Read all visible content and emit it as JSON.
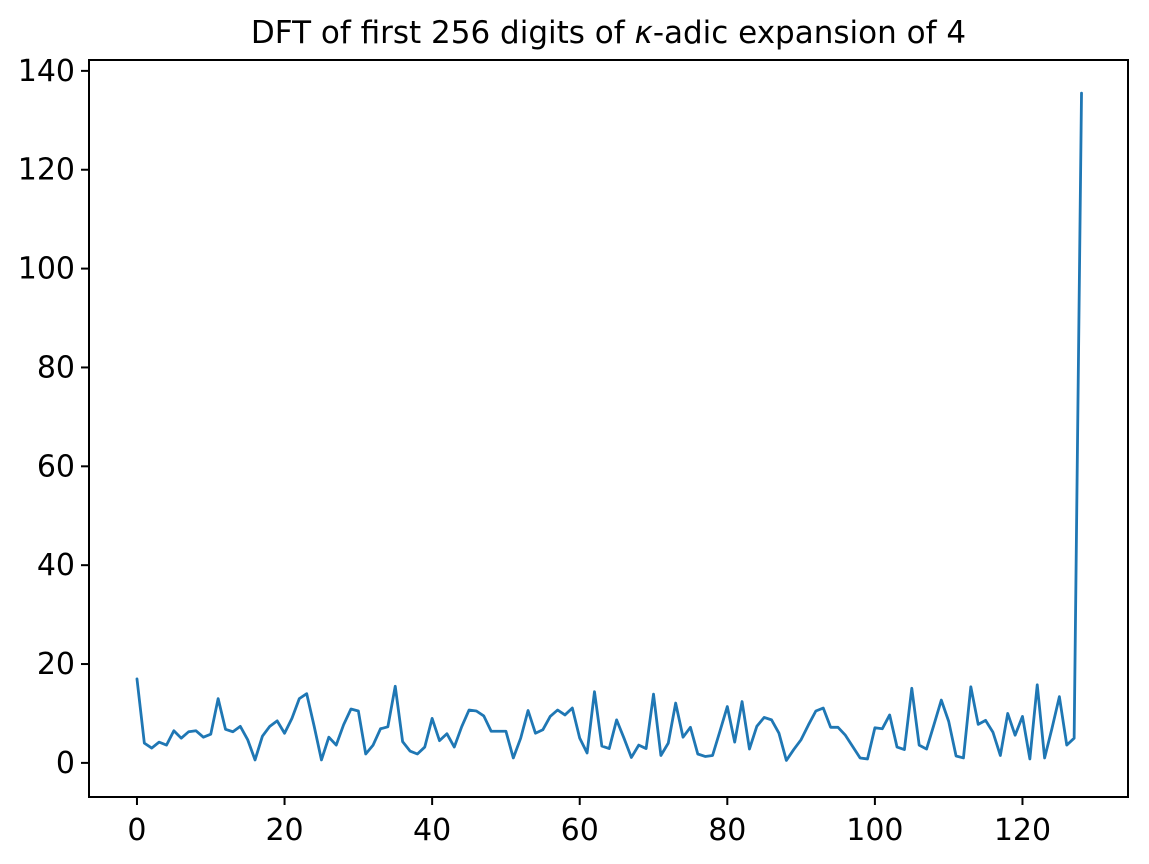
{
  "figure": {
    "background": "#ffffff"
  },
  "chart_data": {
    "type": "line",
    "title": "DFT of first 256 digits of κ-adic expansion of 4",
    "title_parts": [
      {
        "text": "DFT of first 256 digits of ",
        "italic": false
      },
      {
        "text": "κ",
        "italic": true
      },
      {
        "text": "-adic expansion of 4",
        "italic": false
      }
    ],
    "xlabel": "",
    "ylabel": "",
    "legend": "none",
    "grid": false,
    "line_color": "#1f77b4",
    "axis_color": "#000000",
    "tick_label_color": "#000000",
    "xlim": [
      -6.5,
      134.3
    ],
    "ylim": [
      -6.9,
      142.2
    ],
    "xticks": [
      0,
      20,
      40,
      60,
      80,
      100,
      120
    ],
    "yticks": [
      0,
      20,
      40,
      60,
      80,
      100,
      120,
      140
    ],
    "x": [
      0,
      1,
      2,
      3,
      4,
      5,
      6,
      7,
      8,
      9,
      10,
      11,
      12,
      13,
      14,
      15,
      16,
      17,
      18,
      19,
      20,
      21,
      22,
      23,
      24,
      25,
      26,
      27,
      28,
      29,
      30,
      31,
      32,
      33,
      34,
      35,
      36,
      37,
      38,
      39,
      40,
      41,
      42,
      43,
      44,
      45,
      46,
      47,
      48,
      49,
      50,
      51,
      52,
      53,
      54,
      55,
      56,
      57,
      58,
      59,
      60,
      61,
      62,
      63,
      64,
      65,
      66,
      67,
      68,
      69,
      70,
      71,
      72,
      73,
      74,
      75,
      76,
      77,
      78,
      79,
      80,
      81,
      82,
      83,
      84,
      85,
      86,
      87,
      88,
      89,
      90,
      91,
      92,
      93,
      94,
      95,
      96,
      97,
      98,
      99,
      100,
      101,
      102,
      103,
      104,
      105,
      106,
      107,
      108,
      109,
      110,
      111,
      112,
      113,
      114,
      115,
      116,
      117,
      118,
      119,
      120,
      121,
      122,
      123,
      124,
      125,
      126,
      127,
      128
    ],
    "values": [
      17.0,
      4.0,
      3.0,
      4.2,
      3.6,
      6.5,
      5.0,
      6.3,
      6.5,
      5.2,
      5.8,
      13.0,
      6.8,
      6.3,
      7.4,
      4.7,
      0.6,
      5.4,
      7.4,
      8.5,
      6.0,
      9.0,
      13.0,
      14.0,
      7.5,
      0.6,
      5.2,
      3.6,
      7.7,
      10.9,
      10.5,
      1.8,
      3.6,
      6.9,
      7.3,
      15.5,
      4.3,
      2.4,
      1.8,
      3.2,
      9.0,
      4.5,
      5.9,
      3.2,
      7.3,
      10.7,
      10.5,
      9.5,
      6.4,
      6.4,
      6.4,
      1.0,
      5.0,
      10.6,
      6.0,
      6.7,
      9.4,
      10.7,
      9.7,
      11.1,
      5.0,
      2.0,
      14.4,
      3.4,
      2.9,
      8.7,
      5.0,
      1.1,
      3.6,
      2.9,
      13.9,
      1.5,
      4.0,
      12.1,
      5.2,
      7.2,
      1.8,
      1.3,
      1.5,
      6.4,
      11.4,
      4.2,
      12.4,
      2.8,
      7.4,
      9.2,
      8.7,
      6.0,
      0.5,
      2.7,
      4.7,
      7.7,
      10.5,
      11.1,
      7.2,
      7.2,
      5.6,
      3.3,
      1.0,
      0.8,
      7.1,
      6.9,
      9.7,
      3.2,
      2.7,
      15.1,
      3.6,
      2.8,
      7.7,
      12.7,
      8.4,
      1.4,
      1.0,
      15.4,
      7.8,
      8.6,
      6.2,
      1.5,
      10.0,
      5.6,
      9.4,
      0.8,
      15.8,
      1.0,
      7.0,
      13.4,
      3.6,
      5.0,
      135.5
    ]
  }
}
